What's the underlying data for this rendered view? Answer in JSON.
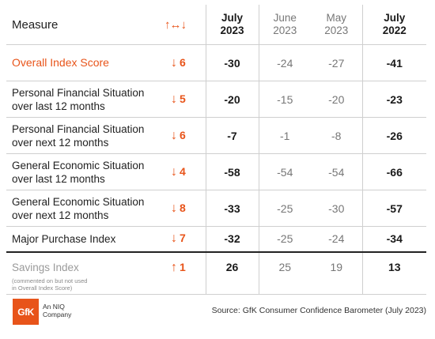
{
  "header": {
    "measure_label": "Measure",
    "change_icon": "↑↔↓",
    "columns": [
      {
        "line1": "July",
        "line2": "2023"
      },
      {
        "line1": "June",
        "line2": "2023"
      },
      {
        "line1": "May",
        "line2": "2023"
      },
      {
        "line1": "July",
        "line2": "2022"
      }
    ]
  },
  "rows": [
    {
      "label_lines": [
        "Overall Index Score"
      ],
      "arrow": "↓",
      "change": "6",
      "values": [
        "-30",
        "-24",
        "-27",
        "-41"
      ]
    },
    {
      "label_lines": [
        "Personal Financial Situation",
        "over last 12 months"
      ],
      "arrow": "↓",
      "change": "5",
      "values": [
        "-20",
        "-15",
        "-20",
        "-23"
      ]
    },
    {
      "label_lines": [
        "Personal Financial Situation",
        "over next 12 months"
      ],
      "arrow": "↓",
      "change": "6",
      "values": [
        "-7",
        "-1",
        "-8",
        "-26"
      ]
    },
    {
      "label_lines": [
        "General Economic Situation",
        "over last 12 months"
      ],
      "arrow": "↓",
      "change": "4",
      "values": [
        "-58",
        "-54",
        "-54",
        "-66"
      ]
    },
    {
      "label_lines": [
        "General Economic Situation",
        "over next 12 months"
      ],
      "arrow": "↓",
      "change": "8",
      "values": [
        "-33",
        "-25",
        "-30",
        "-57"
      ]
    },
    {
      "label_lines": [
        "Major Purchase Index"
      ],
      "arrow": "↓",
      "change": "7",
      "values": [
        "-32",
        "-25",
        "-24",
        "-34"
      ]
    }
  ],
  "savings": {
    "label": "Savings Index",
    "note_line1": "(commented on but not used",
    "note_line2": "in Overall Index Score)",
    "arrow": "↑",
    "change": "1",
    "values": [
      "26",
      "25",
      "19",
      "13"
    ]
  },
  "footer": {
    "logo_text": "GfK",
    "sub_line1": "An NIQ",
    "sub_line2": "Company",
    "source": "Source: GfK Consumer Confidence Barometer (July 2023)"
  },
  "colors": {
    "accent": "#e8541a"
  }
}
